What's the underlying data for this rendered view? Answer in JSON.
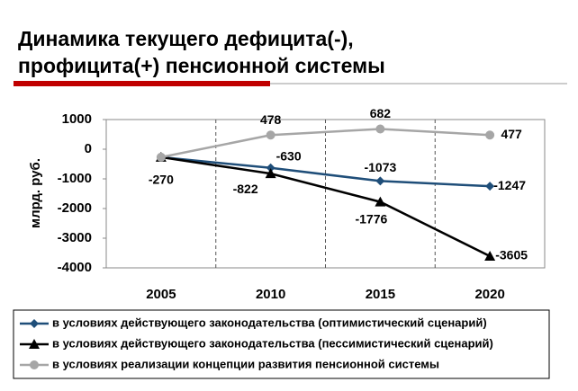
{
  "chart_data": {
    "type": "line",
    "title": [
      "Динамика текущего дефицита(-),",
      "профицита(+) пенсионной системы"
    ],
    "y_label": "млрд. руб.",
    "categories": [
      "2005",
      "2010",
      "2015",
      "2020"
    ],
    "ylim": [
      -4000,
      1000
    ],
    "yticks": [
      -4000,
      -3000,
      -2000,
      -1000,
      0,
      1000
    ],
    "series": [
      {
        "name": "в условиях действующего законодательства (оптимистический сценарий)",
        "color": "#1f4e79",
        "marker": "diamond",
        "values": [
          -270,
          -630,
          -1073,
          -1247
        ]
      },
      {
        "name": "в условиях действующего законодательства (пессимистический сценарий)",
        "color": "#000000",
        "marker": "triangle",
        "values": [
          -270,
          -822,
          -1776,
          -3605
        ]
      },
      {
        "name": "в условиях реализации концепции развития пенсионной системы",
        "color": "#a6a6a6",
        "marker": "circle",
        "values": [
          -270,
          478,
          682,
          477
        ]
      }
    ]
  }
}
